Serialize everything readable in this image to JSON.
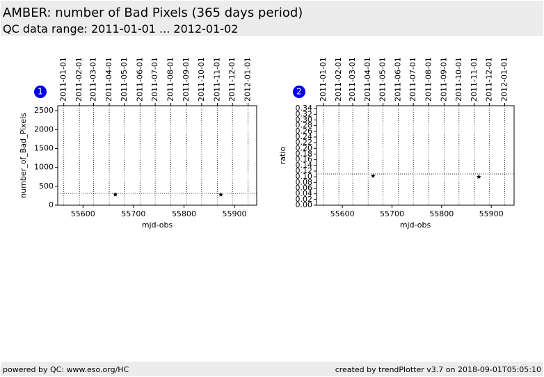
{
  "header": {
    "title": "AMBER: number of Bad Pixels (365 days period)",
    "subtitle": "QC data range: 2011-01-01 ... 2012-01-02"
  },
  "footer": {
    "left": "powered by QC: www.eso.org/HC",
    "right": "created by trendPlotter v3.7 on 2018-09-01T05:05:10"
  },
  "chart_data": [
    {
      "type": "scatter",
      "panel_number": "1",
      "x_label": "mjd-obs",
      "y_label": "number_of_Bad_Pixels",
      "color": "#000000",
      "x": [
        55664,
        55873
      ],
      "values": [
        280,
        280
      ],
      "reference_line": 312,
      "xlim": [
        55550,
        55944
      ],
      "xticks": [
        55600,
        55700,
        55800,
        55900
      ],
      "ylim": [
        0,
        2630
      ],
      "yticks": [
        0,
        500,
        1000,
        1500,
        2000,
        2500
      ],
      "x2ticks": [
        {
          "value": 55562,
          "label": "2011-01-01"
        },
        {
          "value": 55593,
          "label": "2011-02-01"
        },
        {
          "value": 55621,
          "label": "2011-03-01"
        },
        {
          "value": 55652,
          "label": "2011-04-01"
        },
        {
          "value": 55682,
          "label": "2011-05-01"
        },
        {
          "value": 55713,
          "label": "2011-06-01"
        },
        {
          "value": 55743,
          "label": "2011-07-01"
        },
        {
          "value": 55774,
          "label": "2011-08-01"
        },
        {
          "value": 55805,
          "label": "2011-09-01"
        },
        {
          "value": 55835,
          "label": "2011-10-01"
        },
        {
          "value": 55866,
          "label": "2011-11-01"
        },
        {
          "value": 55896,
          "label": "2011-12-01"
        },
        {
          "value": 55927,
          "label": "2012-01-01"
        }
      ],
      "grid": true
    },
    {
      "type": "scatter",
      "panel_number": "2",
      "x_label": "mjd-obs",
      "y_label": "ratio",
      "color": "#000000",
      "x": [
        55662,
        55875
      ],
      "values": [
        0.103,
        0.1
      ],
      "reference_line": 0.11,
      "xlim": [
        55548,
        55946
      ],
      "xticks": [
        55600,
        55700,
        55800,
        55900
      ],
      "ylim": [
        0,
        0.35
      ],
      "yticks": [
        {
          "value": 0,
          "label": "0.00"
        },
        {
          "value": 0.02,
          "label": "0.02"
        },
        {
          "value": 0.04,
          "label": "0.04"
        },
        {
          "value": 0.06,
          "label": "0.06"
        },
        {
          "value": 0.08,
          "label": "0.08"
        },
        {
          "value": 0.1,
          "label": "0.10"
        },
        {
          "value": 0.12,
          "label": "0.12"
        },
        {
          "value": 0.14,
          "label": "0.14"
        },
        {
          "value": 0.16,
          "label": "0.16"
        },
        {
          "value": 0.18,
          "label": "0.18"
        },
        {
          "value": 0.2,
          "label": "0.20"
        },
        {
          "value": 0.22,
          "label": "0.22"
        },
        {
          "value": 0.24,
          "label": "0.24"
        },
        {
          "value": 0.26,
          "label": "0.26"
        },
        {
          "value": 0.28,
          "label": "0.28"
        },
        {
          "value": 0.3,
          "label": "0.30"
        },
        {
          "value": 0.32,
          "label": "0.32"
        },
        {
          "value": 0.34,
          "label": "0.34"
        }
      ],
      "x2ticks": [
        {
          "value": 55562,
          "label": "2011-01-01"
        },
        {
          "value": 55593,
          "label": "2011-02-01"
        },
        {
          "value": 55621,
          "label": "2011-03-01"
        },
        {
          "value": 55652,
          "label": "2011-04-01"
        },
        {
          "value": 55682,
          "label": "2011-05-01"
        },
        {
          "value": 55713,
          "label": "2011-06-01"
        },
        {
          "value": 55743,
          "label": "2011-07-01"
        },
        {
          "value": 55774,
          "label": "2011-08-01"
        },
        {
          "value": 55805,
          "label": "2011-09-01"
        },
        {
          "value": 55835,
          "label": "2011-10-01"
        },
        {
          "value": 55866,
          "label": "2011-11-01"
        },
        {
          "value": 55896,
          "label": "2011-12-01"
        },
        {
          "value": 55927,
          "label": "2012-01-01"
        }
      ],
      "grid": true
    }
  ]
}
